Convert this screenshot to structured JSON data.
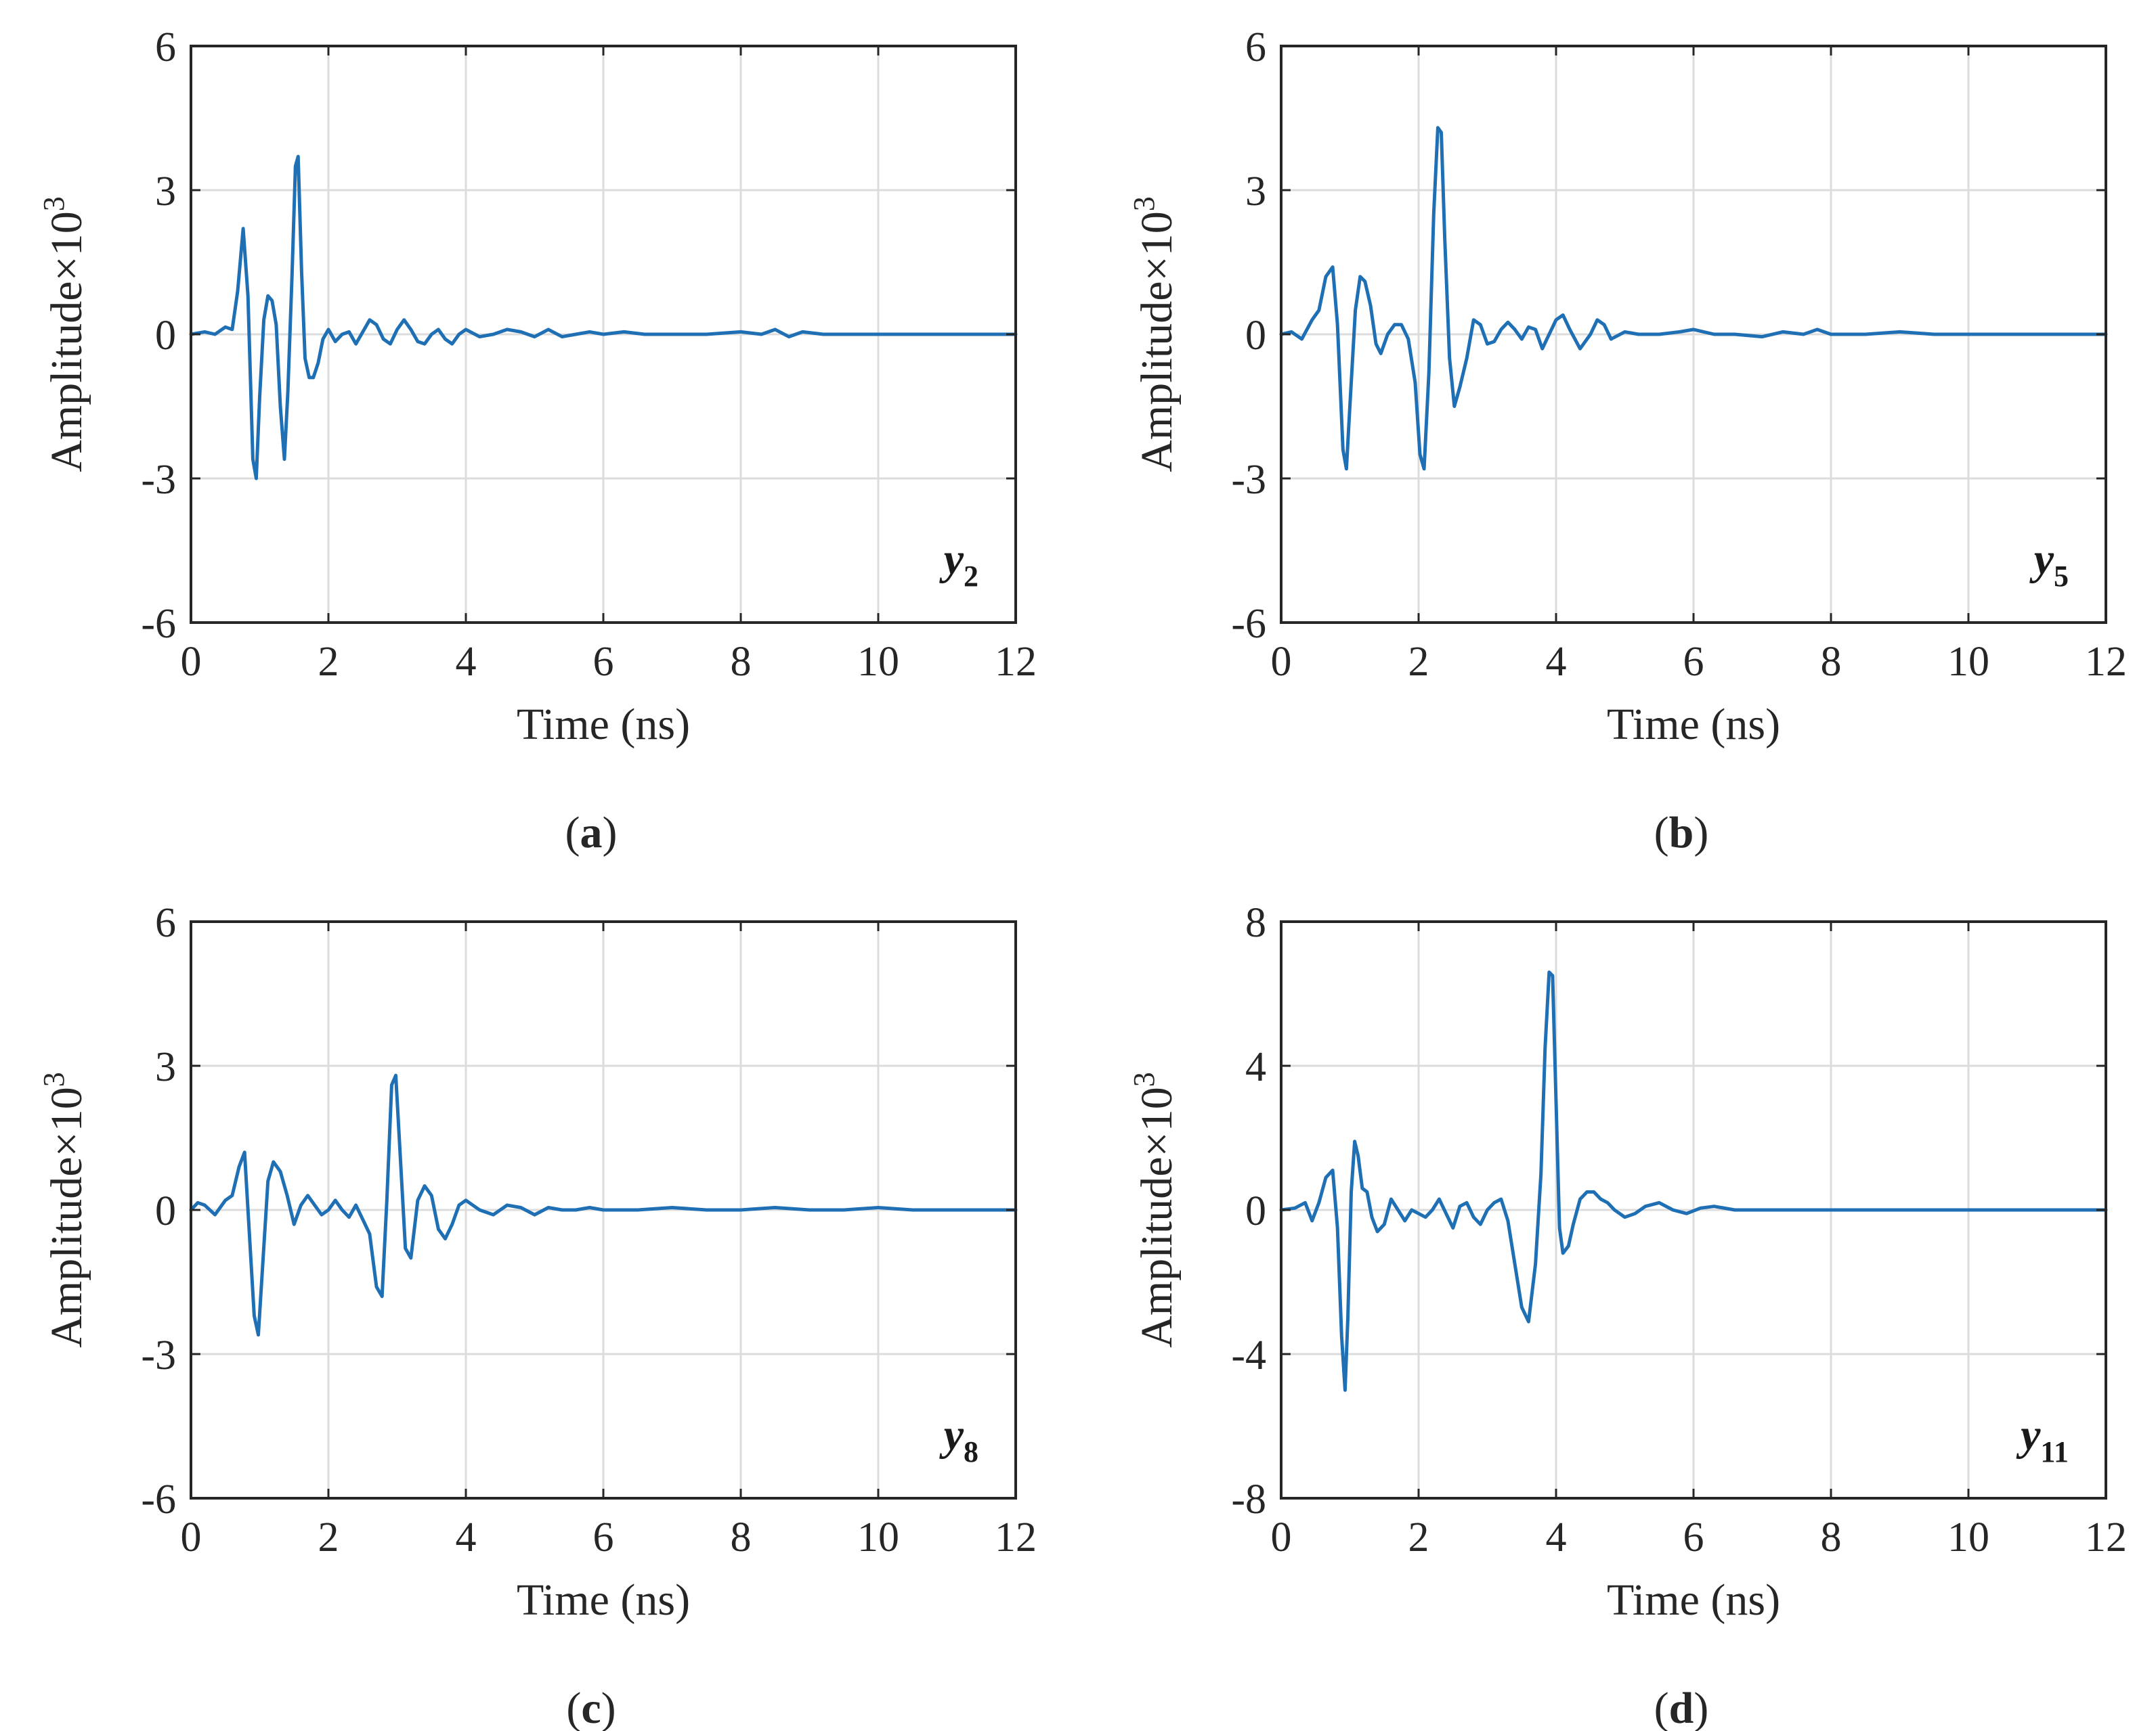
{
  "colors": {
    "line": "#1f6fb4",
    "grid": "#dcdcdc",
    "axis": "#262626",
    "background": "#ffffff"
  },
  "chart_data": [
    {
      "id": "a",
      "type": "line",
      "caption_letter": "a",
      "series_label": {
        "base": "y",
        "sub": "2"
      },
      "xlabel": "Time (ns)",
      "ylabel": "Amplitude×10",
      "ylabel_sup": "3",
      "xlim": [
        0,
        12
      ],
      "ylim": [
        -6,
        6
      ],
      "xticks": [
        "0",
        "2",
        "4",
        "6",
        "8",
        "10",
        "12"
      ],
      "yticks": [
        "-6",
        "-3",
        "0",
        "3",
        "6"
      ],
      "grid": true,
      "series": [
        {
          "name": "y2",
          "x": [
            0,
            0.2,
            0.35,
            0.5,
            0.6,
            0.68,
            0.76,
            0.83,
            0.9,
            0.95,
            1.0,
            1.06,
            1.12,
            1.18,
            1.24,
            1.3,
            1.36,
            1.41,
            1.47,
            1.52,
            1.56,
            1.61,
            1.66,
            1.72,
            1.78,
            1.85,
            1.92,
            2.0,
            2.1,
            2.2,
            2.3,
            2.4,
            2.5,
            2.6,
            2.7,
            2.8,
            2.9,
            3.0,
            3.1,
            3.2,
            3.3,
            3.4,
            3.5,
            3.6,
            3.7,
            3.8,
            3.9,
            4.0,
            4.2,
            4.4,
            4.6,
            4.8,
            5.0,
            5.2,
            5.4,
            5.6,
            5.8,
            6.0,
            6.3,
            6.6,
            7.0,
            7.5,
            8.0,
            8.3,
            8.5,
            8.7,
            8.9,
            9.2,
            9.6,
            10.0,
            10.5,
            11.0,
            11.5,
            12.0
          ],
          "values": [
            0,
            0.05,
            0.0,
            0.15,
            0.1,
            0.9,
            2.2,
            0.8,
            -2.6,
            -3.0,
            -1.3,
            0.3,
            0.8,
            0.7,
            0.2,
            -1.5,
            -2.6,
            -1.2,
            1.2,
            3.5,
            3.7,
            1.3,
            -0.5,
            -0.9,
            -0.9,
            -0.6,
            -0.1,
            0.1,
            -0.15,
            0.0,
            0.05,
            -0.2,
            0.05,
            0.3,
            0.2,
            -0.1,
            -0.2,
            0.1,
            0.3,
            0.1,
            -0.15,
            -0.2,
            0.0,
            0.1,
            -0.1,
            -0.2,
            0.0,
            0.1,
            -0.05,
            0.0,
            0.1,
            0.05,
            -0.05,
            0.1,
            -0.05,
            0.0,
            0.05,
            0.0,
            0.05,
            0.0,
            0.0,
            0.0,
            0.05,
            0.0,
            0.1,
            -0.05,
            0.05,
            0.0,
            0.0,
            0.0,
            0.0,
            0.0,
            0.0,
            0.0
          ]
        }
      ]
    },
    {
      "id": "b",
      "type": "line",
      "caption_letter": "b",
      "series_label": {
        "base": "y",
        "sub": "5"
      },
      "xlabel": "Time (ns)",
      "ylabel": "Amplitude×10",
      "ylabel_sup": "3",
      "xlim": [
        0,
        12
      ],
      "ylim": [
        -6,
        6
      ],
      "xticks": [
        "0",
        "2",
        "4",
        "6",
        "8",
        "10",
        "12"
      ],
      "yticks": [
        "-6",
        "-3",
        "0",
        "3",
        "6"
      ],
      "grid": true,
      "series": [
        {
          "name": "y5",
          "x": [
            0,
            0.15,
            0.3,
            0.45,
            0.55,
            0.65,
            0.75,
            0.82,
            0.9,
            0.95,
            1.0,
            1.08,
            1.15,
            1.22,
            1.3,
            1.38,
            1.45,
            1.55,
            1.65,
            1.75,
            1.85,
            1.95,
            2.02,
            2.08,
            2.15,
            2.22,
            2.28,
            2.33,
            2.38,
            2.45,
            2.52,
            2.6,
            2.7,
            2.8,
            2.9,
            3.0,
            3.1,
            3.2,
            3.3,
            3.4,
            3.5,
            3.6,
            3.7,
            3.8,
            3.9,
            4.0,
            4.1,
            4.2,
            4.35,
            4.5,
            4.6,
            4.7,
            4.8,
            5.0,
            5.2,
            5.5,
            5.8,
            6.0,
            6.3,
            6.6,
            7.0,
            7.3,
            7.6,
            7.8,
            8.0,
            8.5,
            9.0,
            9.5,
            10.0,
            11.0,
            12.0
          ],
          "values": [
            0,
            0.05,
            -0.1,
            0.3,
            0.5,
            1.2,
            1.4,
            0.2,
            -2.4,
            -2.8,
            -1.5,
            0.5,
            1.2,
            1.1,
            0.6,
            -0.2,
            -0.4,
            0.0,
            0.2,
            0.2,
            -0.1,
            -1.0,
            -2.5,
            -2.8,
            -0.8,
            2.5,
            4.3,
            4.2,
            2.0,
            -0.5,
            -1.5,
            -1.1,
            -0.5,
            0.3,
            0.2,
            -0.2,
            -0.15,
            0.1,
            0.25,
            0.1,
            -0.1,
            0.15,
            0.1,
            -0.3,
            0.0,
            0.3,
            0.4,
            0.1,
            -0.3,
            0.0,
            0.3,
            0.2,
            -0.1,
            0.05,
            0.0,
            0.0,
            0.05,
            0.1,
            0.0,
            0.0,
            -0.05,
            0.05,
            0.0,
            0.1,
            0.0,
            0.0,
            0.05,
            0.0,
            0.0,
            0.0,
            0.0
          ]
        }
      ]
    },
    {
      "id": "c",
      "type": "line",
      "caption_letter": "c",
      "series_label": {
        "base": "y",
        "sub": "8"
      },
      "xlabel": "Time (ns)",
      "ylabel": "Amplitude×10",
      "ylabel_sup": "3",
      "xlim": [
        0,
        12
      ],
      "ylim": [
        -6,
        6
      ],
      "xticks": [
        "0",
        "2",
        "4",
        "6",
        "8",
        "10",
        "12"
      ],
      "yticks": [
        "-6",
        "-3",
        "0",
        "3",
        "6"
      ],
      "grid": true,
      "series": [
        {
          "name": "y8",
          "x": [
            0,
            0.1,
            0.2,
            0.35,
            0.5,
            0.6,
            0.7,
            0.78,
            0.85,
            0.92,
            0.98,
            1.05,
            1.12,
            1.2,
            1.3,
            1.4,
            1.5,
            1.6,
            1.7,
            1.8,
            1.9,
            2.0,
            2.1,
            2.2,
            2.3,
            2.4,
            2.5,
            2.6,
            2.7,
            2.78,
            2.85,
            2.92,
            2.98,
            3.05,
            3.12,
            3.2,
            3.3,
            3.4,
            3.5,
            3.6,
            3.7,
            3.8,
            3.9,
            4.0,
            4.2,
            4.4,
            4.6,
            4.8,
            5.0,
            5.2,
            5.4,
            5.6,
            5.8,
            6.0,
            6.5,
            7.0,
            7.5,
            8.0,
            8.5,
            9.0,
            9.5,
            10.0,
            10.5,
            11.0,
            11.5,
            12.0
          ],
          "values": [
            0,
            0.15,
            0.1,
            -0.1,
            0.2,
            0.3,
            0.9,
            1.2,
            -0.5,
            -2.2,
            -2.6,
            -1.0,
            0.6,
            1.0,
            0.8,
            0.3,
            -0.3,
            0.1,
            0.3,
            0.1,
            -0.1,
            0.0,
            0.2,
            0.0,
            -0.15,
            0.1,
            -0.2,
            -0.5,
            -1.6,
            -1.8,
            0.2,
            2.6,
            2.8,
            1.0,
            -0.8,
            -1.0,
            0.2,
            0.5,
            0.3,
            -0.4,
            -0.6,
            -0.3,
            0.1,
            0.2,
            0.0,
            -0.1,
            0.1,
            0.05,
            -0.1,
            0.05,
            0.0,
            0.0,
            0.05,
            0.0,
            0.0,
            0.05,
            0.0,
            0.0,
            0.05,
            0.0,
            0.0,
            0.05,
            0.0,
            0.0,
            0.0,
            0.0
          ]
        }
      ]
    },
    {
      "id": "d",
      "type": "line",
      "caption_letter": "d",
      "series_label": {
        "base": "y",
        "sub": "11"
      },
      "xlabel": "Time (ns)",
      "ylabel": "Amplitude×10",
      "ylabel_sup": "3",
      "xlim": [
        0,
        12
      ],
      "ylim": [
        -8,
        8
      ],
      "xticks": [
        "0",
        "2",
        "4",
        "6",
        "8",
        "10",
        "12"
      ],
      "yticks": [
        "-8",
        "-4",
        "0",
        "4",
        "8"
      ],
      "grid": true,
      "series": [
        {
          "name": "y11",
          "x": [
            0,
            0.2,
            0.35,
            0.45,
            0.55,
            0.65,
            0.75,
            0.82,
            0.88,
            0.93,
            0.97,
            1.02,
            1.07,
            1.12,
            1.18,
            1.25,
            1.32,
            1.4,
            1.5,
            1.6,
            1.7,
            1.8,
            1.9,
            2.0,
            2.1,
            2.2,
            2.3,
            2.4,
            2.5,
            2.6,
            2.7,
            2.8,
            2.9,
            3.0,
            3.1,
            3.2,
            3.3,
            3.4,
            3.5,
            3.6,
            3.7,
            3.78,
            3.84,
            3.9,
            3.95,
            4.0,
            4.05,
            4.1,
            4.18,
            4.25,
            4.35,
            4.45,
            4.55,
            4.65,
            4.75,
            4.85,
            5.0,
            5.15,
            5.3,
            5.5,
            5.7,
            5.9,
            6.1,
            6.3,
            6.6,
            7.0,
            7.5,
            8.0,
            9.0,
            10.0,
            11.0,
            12.0
          ],
          "values": [
            0,
            0.05,
            0.2,
            -0.3,
            0.2,
            0.9,
            1.1,
            -0.5,
            -3.5,
            -5.0,
            -3.0,
            0.5,
            1.9,
            1.5,
            0.6,
            0.5,
            -0.2,
            -0.6,
            -0.4,
            0.3,
            0.0,
            -0.3,
            0.0,
            -0.1,
            -0.2,
            0.0,
            0.3,
            -0.1,
            -0.5,
            0.1,
            0.2,
            -0.2,
            -0.4,
            0.0,
            0.2,
            0.3,
            -0.3,
            -1.5,
            -2.7,
            -3.1,
            -1.5,
            1.0,
            4.5,
            6.6,
            6.5,
            3.0,
            -0.5,
            -1.2,
            -1.0,
            -0.4,
            0.3,
            0.5,
            0.5,
            0.3,
            0.2,
            0.0,
            -0.2,
            -0.1,
            0.1,
            0.2,
            0.0,
            -0.1,
            0.05,
            0.1,
            0.0,
            0.0,
            0.0,
            0.0,
            0.0,
            0.0,
            0.0,
            0.0
          ]
        }
      ]
    }
  ]
}
